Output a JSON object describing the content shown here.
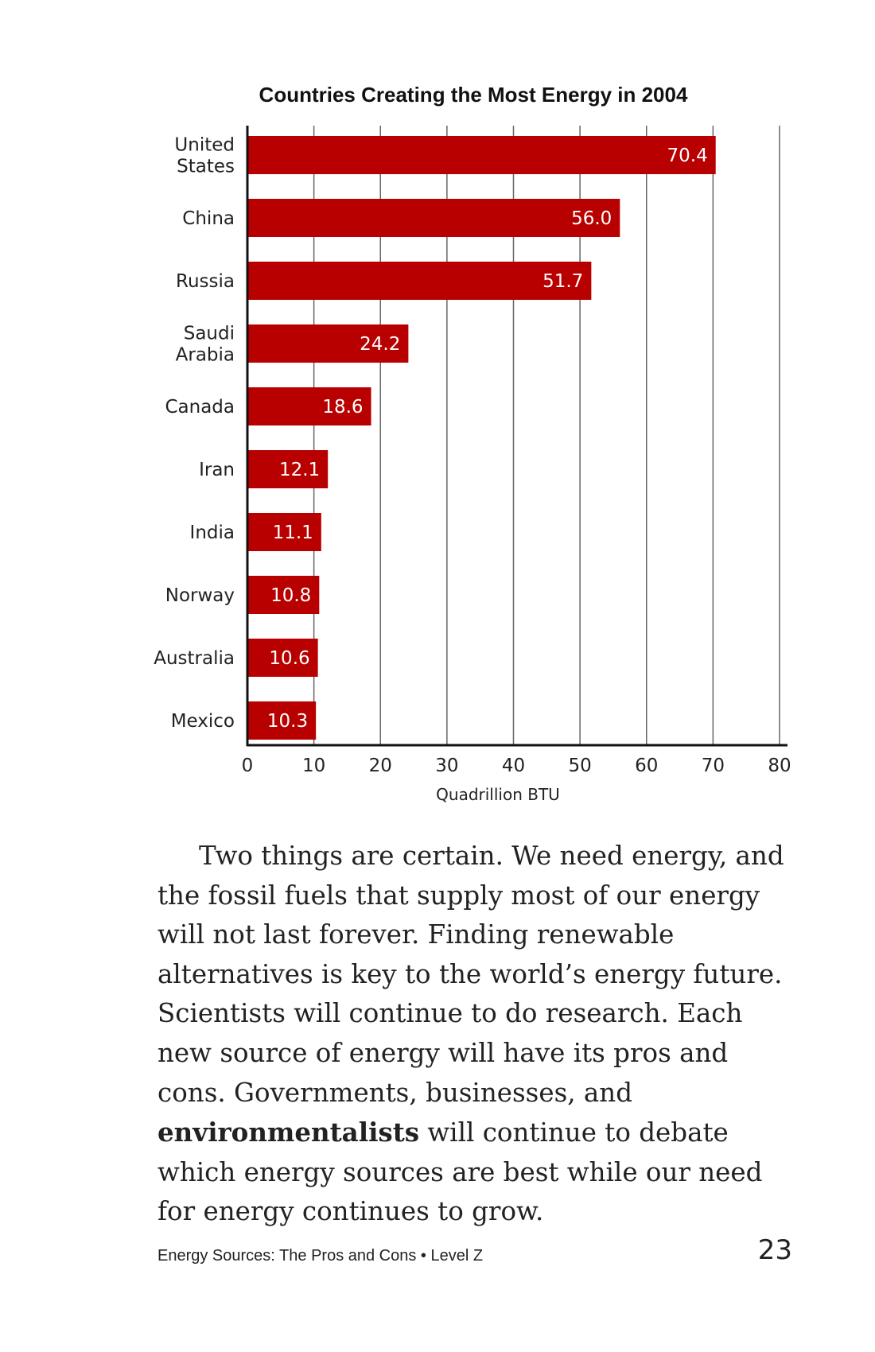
{
  "chart_data": {
    "type": "bar",
    "orientation": "horizontal",
    "title": "Countries Creating the Most Energy in 2004",
    "categories": [
      [
        "United",
        "States"
      ],
      [
        "China"
      ],
      [
        "Russia"
      ],
      [
        "Saudi",
        "Arabia"
      ],
      [
        "Canada"
      ],
      [
        "Iran"
      ],
      [
        "India"
      ],
      [
        "Norway"
      ],
      [
        "Australia"
      ],
      [
        "Mexico"
      ]
    ],
    "values": [
      70.4,
      56.0,
      51.7,
      24.2,
      18.6,
      12.1,
      11.1,
      10.8,
      10.6,
      10.3
    ],
    "value_labels": [
      "70.4",
      "56.0",
      "51.7",
      "24.2",
      "18.6",
      "12.1",
      "11.1",
      "10.8",
      "10.6",
      "10.3"
    ],
    "xlabel": "Quadrillion BTU",
    "xlim": [
      0,
      80
    ],
    "xticks": [
      0,
      10,
      20,
      30,
      40,
      50,
      60,
      70,
      80
    ],
    "grid": "vertical",
    "bar_color": "#b90000"
  },
  "body": {
    "before_bold": "Two things are certain. We need energy, and the fossil fuels that supply most of our energy will not last forever. Finding renewable alternatives is key to the world’s energy future. Scientists will continue to do research. Each new source of energy will have its pros and cons. Governments, businesses, and ",
    "bold": "environmentalists",
    "after_bold": " will continue to debate which energy sources are best while our need for energy continues to grow."
  },
  "footer": {
    "book_title": "Energy Sources: The Pros and Cons • Level Z",
    "page_number": "23"
  }
}
